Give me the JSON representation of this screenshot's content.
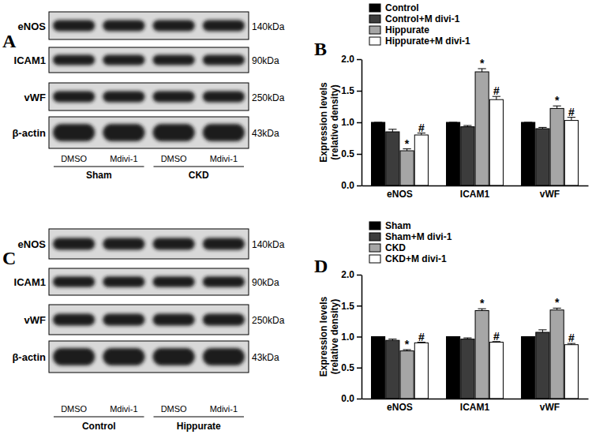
{
  "chart_data": [
    {
      "type": "bar",
      "panel": "B",
      "ylabel": [
        "Expression levels",
        "(relative density)"
      ],
      "categories": [
        "eNOS",
        "ICAM1",
        "vWF"
      ],
      "series": [
        {
          "name": "Control",
          "color": "#000000",
          "values": [
            1.0,
            1.0,
            1.0
          ],
          "errors": [
            0.0,
            0.0,
            0.0
          ],
          "annotations": [
            null,
            null,
            null
          ]
        },
        {
          "name": "Control+M divi-1",
          "color": "#3c3c3c",
          "values": [
            0.85,
            0.93,
            0.9
          ],
          "errors": [
            0.04,
            0.02,
            0.02
          ],
          "annotations": [
            null,
            null,
            null
          ]
        },
        {
          "name": "Hippurate",
          "color": "#a6a6a6",
          "values": [
            0.55,
            1.8,
            1.22
          ],
          "errors": [
            0.03,
            0.05,
            0.04
          ],
          "annotations": [
            "*",
            "*",
            "*"
          ]
        },
        {
          "name": "Hippurate+M divi-1",
          "color": "#ffffff",
          "values": [
            0.8,
            1.36,
            1.03
          ],
          "errors": [
            0.03,
            0.05,
            0.05
          ],
          "annotations": [
            "#",
            "#",
            "#"
          ]
        }
      ],
      "ylim": [
        0,
        2
      ],
      "yticks": [
        {
          "value": 0,
          "label": "0.0"
        },
        {
          "value": 0.5,
          "label": "0.5"
        },
        {
          "value": 1,
          "label": "1.0"
        },
        {
          "value": 1.5,
          "label": "1.5"
        },
        {
          "value": 2,
          "label": "2.0"
        }
      ],
      "legend": "top-left"
    },
    {
      "type": "bar",
      "panel": "D",
      "ylabel": [
        "Expression levels",
        "(relative density)"
      ],
      "categories": [
        "eNOS",
        "ICAM1",
        "vWF"
      ],
      "series": [
        {
          "name": "Sham",
          "color": "#000000",
          "values": [
            1.0,
            1.0,
            1.0
          ],
          "errors": [
            0.0,
            0.0,
            0.0
          ],
          "annotations": [
            null,
            null,
            null
          ]
        },
        {
          "name": "Sham+M divi-1",
          "color": "#3c3c3c",
          "values": [
            0.94,
            0.96,
            1.07
          ],
          "errors": [
            0.02,
            0.02,
            0.04
          ],
          "annotations": [
            null,
            null,
            null
          ]
        },
        {
          "name": "CKD",
          "color": "#a6a6a6",
          "values": [
            0.77,
            1.42,
            1.43
          ],
          "errors": [
            0.02,
            0.03,
            0.03
          ],
          "annotations": [
            "*",
            "*",
            "*"
          ]
        },
        {
          "name": "CKD+M divi-1",
          "color": "#ffffff",
          "values": [
            0.9,
            0.91,
            0.87
          ],
          "errors": [
            0.01,
            0.01,
            0.02
          ],
          "annotations": [
            "#",
            "#",
            "#"
          ]
        }
      ],
      "ylim": [
        0,
        2
      ],
      "yticks": [
        {
          "value": 0,
          "label": "0.0"
        },
        {
          "value": 0.5,
          "label": "0.5"
        },
        {
          "value": 1,
          "label": "1.0"
        },
        {
          "value": 1.5,
          "label": "1.5"
        },
        {
          "value": 2,
          "label": "2.0"
        }
      ],
      "legend": "top-left"
    }
  ],
  "blots": [
    {
      "panel": "A",
      "rows": [
        {
          "protein": "eNOS",
          "kda": "140kDa"
        },
        {
          "protein": "ICAM1",
          "kda": "90kDa"
        },
        {
          "protein": "vWF",
          "kda": "250kDa"
        },
        {
          "protein": "β-actin",
          "kda": "43kDa"
        }
      ],
      "lanes": [
        "DMSO",
        "Mdivi-1",
        "DMSO",
        "Mdivi-1"
      ],
      "groups": [
        "Sham",
        "CKD"
      ]
    },
    {
      "panel": "C",
      "rows": [
        {
          "protein": "eNOS",
          "kda": "140kDa"
        },
        {
          "protein": "ICAM1",
          "kda": "90kDa"
        },
        {
          "protein": "vWF",
          "kda": "250kDa"
        },
        {
          "protein": "β-actin",
          "kda": "43kDa"
        }
      ],
      "lanes": [
        "DMSO",
        "Mdivi-1",
        "DMSO",
        "Mdivi-1"
      ],
      "groups": [
        "Control",
        "Hippurate"
      ]
    }
  ]
}
